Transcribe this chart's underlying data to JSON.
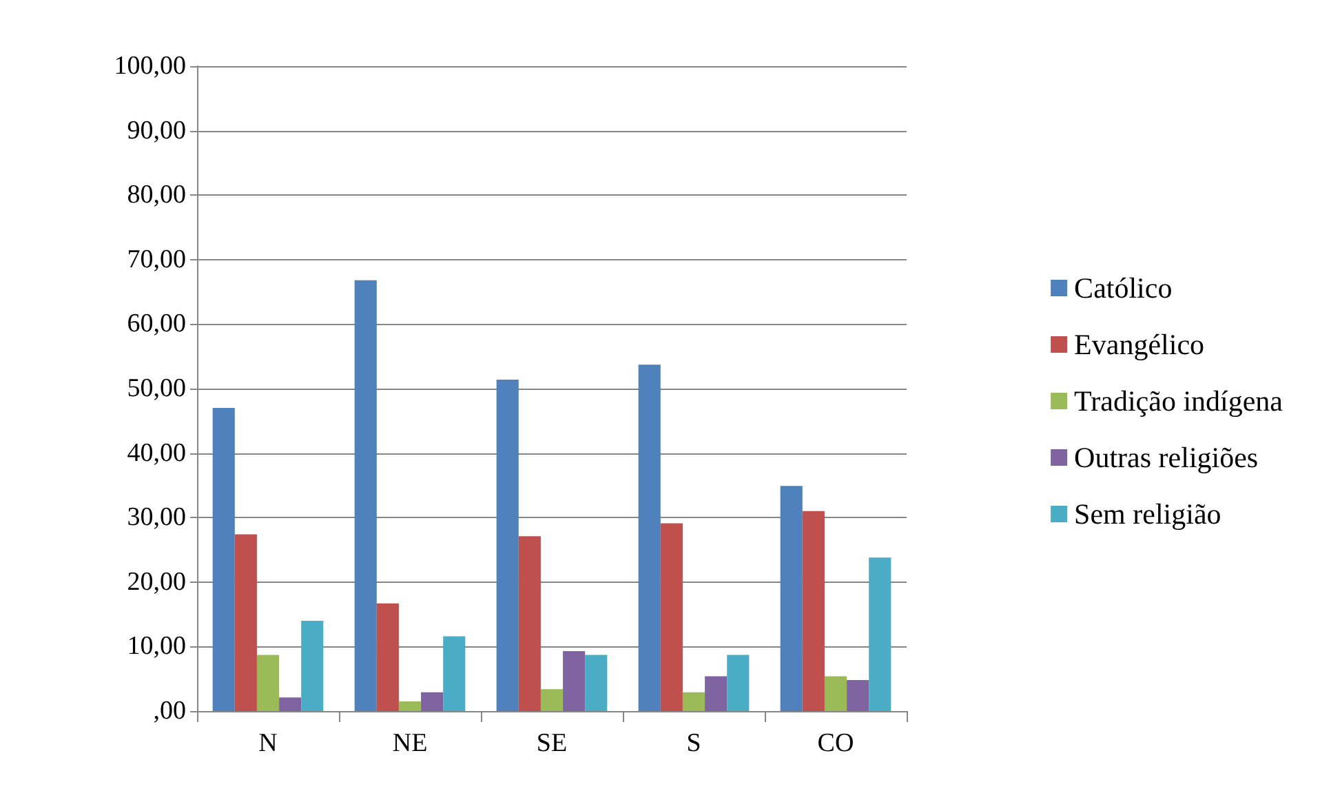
{
  "chart_data": {
    "type": "bar",
    "categories": [
      "N",
      "NE",
      "SE",
      "S",
      "CO"
    ],
    "series": [
      {
        "name": "Católico",
        "color": "#4f81bd",
        "values": [
          47.0,
          66.8,
          51.4,
          53.7,
          34.9
        ]
      },
      {
        "name": "Evangélico",
        "color": "#c0504d",
        "values": [
          27.4,
          16.7,
          27.1,
          29.1,
          31.0
        ]
      },
      {
        "name": "Tradição indígena",
        "color": "#9bbb59",
        "values": [
          8.7,
          1.5,
          3.4,
          2.9,
          5.4
        ]
      },
      {
        "name": "Outras religiões",
        "color": "#8064a2",
        "values": [
          2.1,
          2.9,
          9.3,
          5.4,
          4.8
        ]
      },
      {
        "name": "Sem religião",
        "color": "#4bacc6",
        "values": [
          14.0,
          11.6,
          8.7,
          8.7,
          23.8
        ]
      }
    ],
    "ylim": [
      0,
      100
    ],
    "yticks": [
      {
        "value": 0,
        "label": ",00"
      },
      {
        "value": 10,
        "label": "10,00"
      },
      {
        "value": 20,
        "label": "20,00"
      },
      {
        "value": 30,
        "label": "30,00"
      },
      {
        "value": 40,
        "label": "40,00"
      },
      {
        "value": 50,
        "label": "50,00"
      },
      {
        "value": 60,
        "label": "60,00"
      },
      {
        "value": 70,
        "label": "70,00"
      },
      {
        "value": 80,
        "label": "80,00"
      },
      {
        "value": 90,
        "label": "90,00"
      },
      {
        "value": 100,
        "label": "100,00"
      }
    ],
    "grid": "y",
    "legend": "right"
  }
}
